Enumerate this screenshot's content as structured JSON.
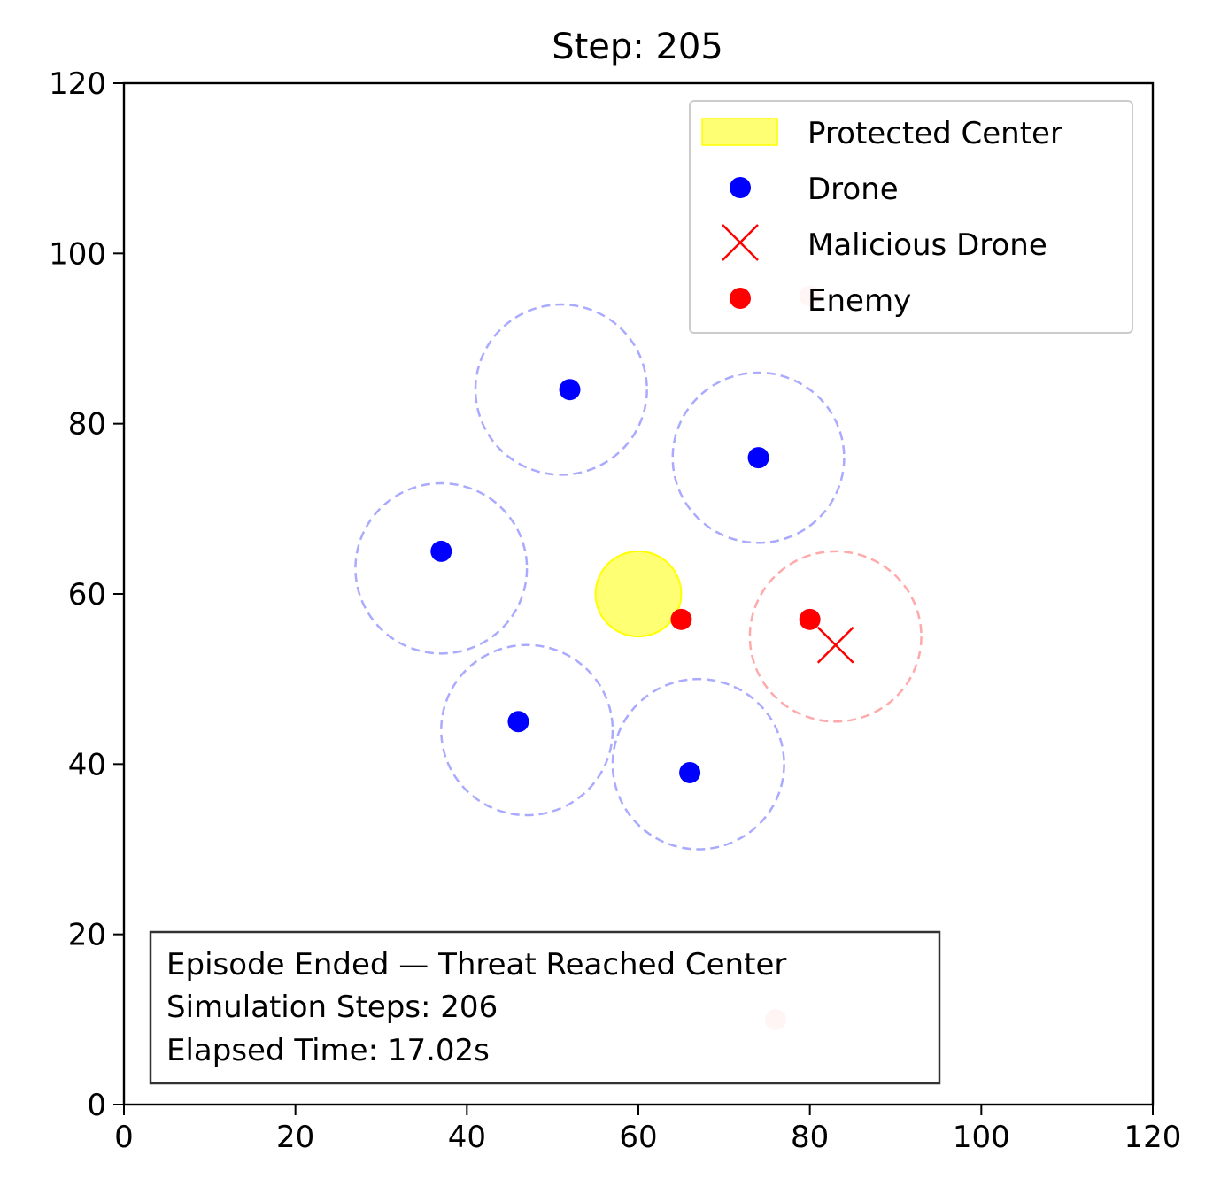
{
  "chart_data": {
    "type": "scatter",
    "title": "Step: 205",
    "xlabel": "",
    "ylabel": "",
    "xlim": [
      0,
      120
    ],
    "ylim": [
      0,
      120
    ],
    "xticks": [
      0,
      20,
      40,
      60,
      80,
      100,
      120
    ],
    "yticks": [
      0,
      20,
      40,
      60,
      80,
      100,
      120
    ],
    "grid": false,
    "legend_position": "top-right",
    "legend": [
      {
        "label": "Protected Center",
        "marker": "patch",
        "color": "#ffff00"
      },
      {
        "label": "Drone",
        "marker": "dot",
        "color": "#0000ff"
      },
      {
        "label": "Malicious Drone",
        "marker": "x",
        "color": "#ff0000"
      },
      {
        "label": "Enemy",
        "marker": "dot",
        "color": "#ff0000"
      }
    ],
    "protected_center": {
      "x": 60,
      "y": 60,
      "radius": 5,
      "color": "#ffff00"
    },
    "drones": [
      {
        "x": 52,
        "y": 84,
        "range_center": [
          51,
          84
        ],
        "range_radius": 10
      },
      {
        "x": 74,
        "y": 76,
        "range_center": [
          74,
          76
        ],
        "range_radius": 10
      },
      {
        "x": 37,
        "y": 65,
        "range_center": [
          37,
          63
        ],
        "range_radius": 10
      },
      {
        "x": 46,
        "y": 45,
        "range_center": [
          47,
          44
        ],
        "range_radius": 10
      },
      {
        "x": 66,
        "y": 39,
        "range_center": [
          67,
          40
        ],
        "range_radius": 10
      }
    ],
    "malicious_drones": [
      {
        "x": 83,
        "y": 54,
        "range_center": [
          83,
          55
        ],
        "range_radius": 10
      }
    ],
    "enemies": [
      {
        "x": 65,
        "y": 57
      },
      {
        "x": 80,
        "y": 57
      }
    ],
    "faded_enemies": [
      {
        "x": 80,
        "y": 95
      },
      {
        "x": 76,
        "y": 10
      }
    ],
    "colors": {
      "drone": "#0000ff",
      "drone_range": "#aaaaff",
      "enemy": "#ff0000",
      "malicious_range": "#ffaaaa",
      "faded_enemy": "#ffcccc"
    }
  },
  "info_box": {
    "line1": "Episode Ended — Threat Reached Center",
    "line2": "Simulation Steps: 206",
    "line3": "Elapsed Time: 17.02s"
  }
}
